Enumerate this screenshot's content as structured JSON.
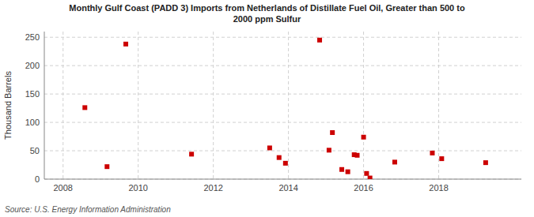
{
  "chart_data": {
    "type": "scatter",
    "title": "Monthly Gulf Coast (PADD 3) Imports from Netherlands of Distillate Fuel Oil, Greater than 500 to\n2000 ppm Sulfur",
    "ylabel": "Thousand Barrels",
    "source": "Source: U.S. Energy Information Administration",
    "color": "#cc0000",
    "marker": "square",
    "grid": true,
    "xlim": [
      2007.5,
      2020.2
    ],
    "ylim": [
      0,
      260
    ],
    "xticks": [
      2008,
      2010,
      2012,
      2014,
      2016,
      2018
    ],
    "yticks": [
      0,
      50,
      100,
      150,
      200,
      250
    ],
    "x": [
      2008.58,
      2009.17,
      2009.67,
      2011.42,
      2013.5,
      2013.75,
      2013.92,
      2014.83,
      2015.08,
      2015.17,
      2015.42,
      2015.58,
      2015.75,
      2015.83,
      2016.0,
      2016.08,
      2016.17,
      2016.83,
      2017.83,
      2018.08,
      2019.25
    ],
    "values": [
      126,
      22,
      238,
      44,
      55,
      38,
      28,
      245,
      51,
      82,
      17,
      13,
      43,
      42,
      74,
      10,
      2,
      30,
      46,
      36,
      29
    ]
  }
}
